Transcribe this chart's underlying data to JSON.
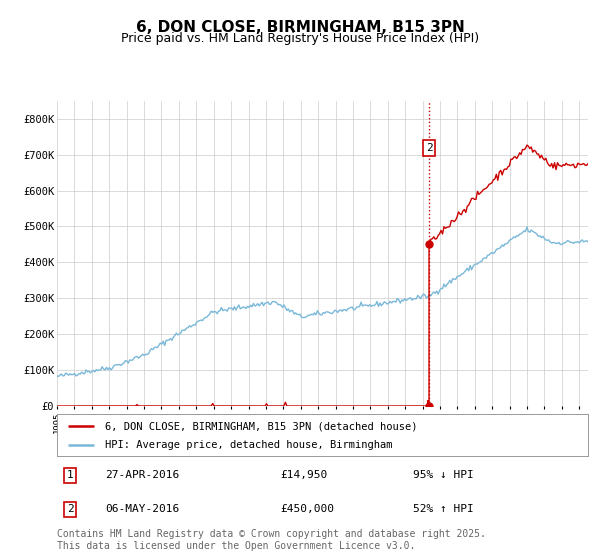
{
  "title": "6, DON CLOSE, BIRMINGHAM, B15 3PN",
  "subtitle": "Price paid vs. HM Land Registry's House Price Index (HPI)",
  "title_fontsize": 11,
  "subtitle_fontsize": 9,
  "ylim": [
    0,
    850000
  ],
  "ytick_labels": [
    "£0",
    "£100K",
    "£200K",
    "£300K",
    "£400K",
    "£500K",
    "£600K",
    "£700K",
    "£800K"
  ],
  "ytick_values": [
    0,
    100000,
    200000,
    300000,
    400000,
    500000,
    600000,
    700000,
    800000
  ],
  "hpi_color": "#7ab8d9",
  "price_color": "#cc0000",
  "vline_color": "#cc0000",
  "marker_color": "#cc0000",
  "background_color": "#ffffff",
  "grid_color": "#cccccc",
  "transaction1": {
    "date": "27-APR-2016",
    "price": "£14,950",
    "hpi_pct": "95% ↓ HPI",
    "label": "1"
  },
  "transaction2": {
    "date": "06-MAY-2016",
    "price": "£450,000",
    "hpi_pct": "52% ↑ HPI",
    "label": "2"
  },
  "sale1_price": 14950,
  "sale2_price": 450000,
  "sale_year1": 2016.3,
  "sale_year2": 2016.37,
  "legend_entry1": "6, DON CLOSE, BIRMINGHAM, B15 3PN (detached house)",
  "legend_entry2": "HPI: Average price, detached house, Birmingham",
  "footer": "Contains HM Land Registry data © Crown copyright and database right 2025.\nThis data is licensed under the Open Government Licence v3.0.",
  "footer_fontsize": 7,
  "xmin": 1995,
  "xmax": 2025.5,
  "ann2_label": "2"
}
